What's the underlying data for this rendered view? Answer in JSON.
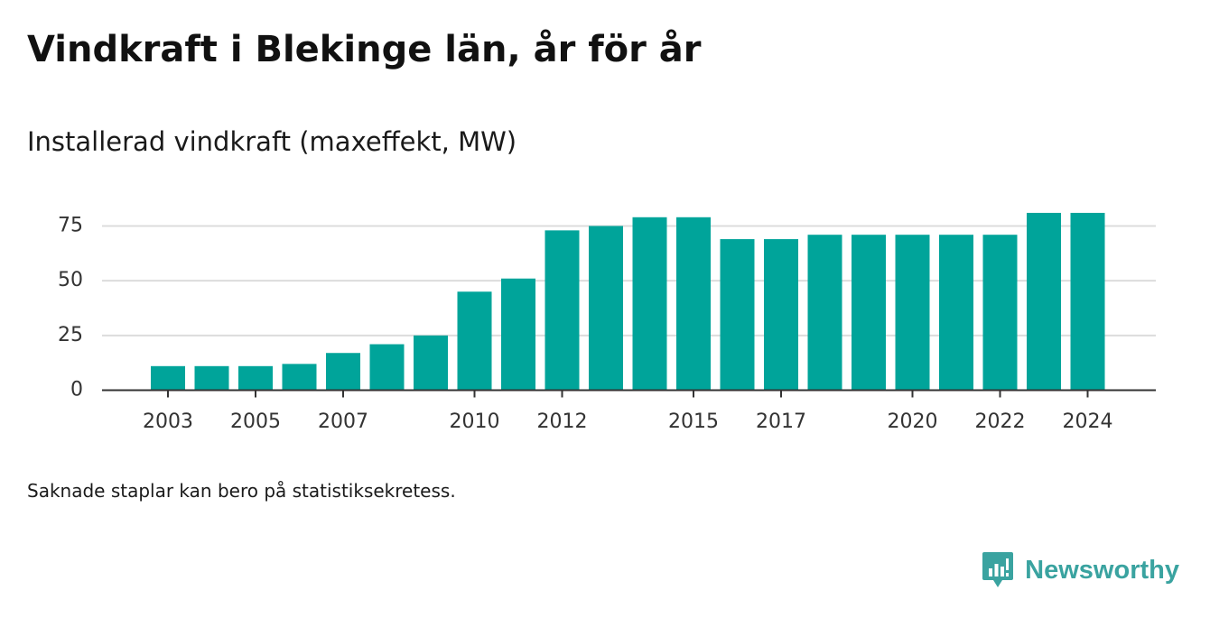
{
  "title": "Vindkraft i Blekinge län, år för år",
  "subtitle": "Installerad vindkraft (maxeffekt, MW)",
  "footnote": "Saknade staplar kan bero på statistiksekretess.",
  "brand": {
    "name": "Newsworthy",
    "icon": "newsworthy-logo-icon",
    "color": "#3aa3a0"
  },
  "chart_data": {
    "type": "bar",
    "title": "",
    "xlabel": "",
    "ylabel": "",
    "categories": [
      2003,
      2004,
      2005,
      2006,
      2007,
      2008,
      2009,
      2010,
      2011,
      2012,
      2013,
      2014,
      2015,
      2016,
      2017,
      2018,
      2019,
      2020,
      2021,
      2022,
      2023,
      2024
    ],
    "values": [
      11,
      11,
      11,
      12,
      17,
      21,
      25,
      45,
      51,
      73,
      75,
      79,
      79,
      69,
      69,
      71,
      71,
      71,
      71,
      71,
      81,
      81
    ],
    "x_tick_labels": [
      "2003",
      "2005",
      "2007",
      "2010",
      "2012",
      "2015",
      "2017",
      "2020",
      "2022",
      "2024"
    ],
    "y_ticks": [
      0,
      25,
      50,
      75
    ],
    "ylim": [
      0,
      85
    ],
    "bar_color": "#00a49a",
    "grid": true,
    "gridline_color": "#dcdcdc",
    "axis_color": "#333333"
  }
}
